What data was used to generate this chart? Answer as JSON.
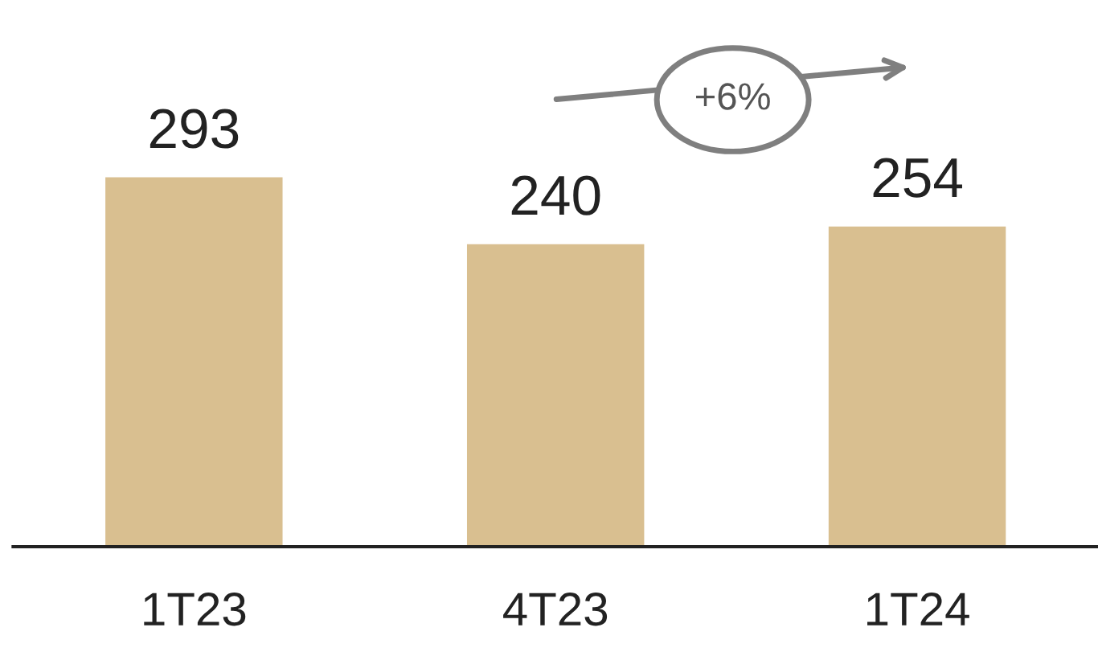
{
  "chart_data": {
    "type": "bar",
    "categories": [
      "1T23",
      "4T23",
      "1T24"
    ],
    "values": [
      293,
      240,
      254
    ],
    "color": "#d9bf90",
    "data_labels": true,
    "annotations": [
      "+6%"
    ],
    "grid": false,
    "legend": false
  }
}
